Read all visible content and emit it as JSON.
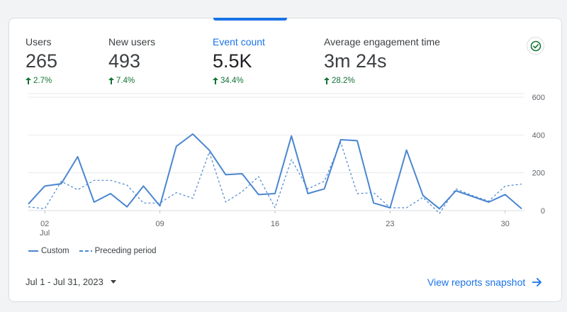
{
  "metrics": [
    {
      "label": "Users",
      "value": "265",
      "change": "2.7%",
      "active": false
    },
    {
      "label": "New users",
      "value": "493",
      "change": "7.4%",
      "active": false
    },
    {
      "label": "Event count",
      "value": "5.5K",
      "active": true,
      "change": "34.4%"
    },
    {
      "label": "Average engagement time",
      "value": "3m 24s",
      "change": "28.2%",
      "active": false
    }
  ],
  "legend": {
    "custom_label": "Custom",
    "preceding_label": "Preceding period"
  },
  "footer": {
    "date_range": "Jul 1 - Jul 31, 2023",
    "snapshot_link": "View reports snapshot"
  },
  "colors": {
    "accent": "#1a73e8",
    "line": "#4a86d0",
    "positive": "#137333"
  },
  "icons": {
    "check": "check-circle-icon",
    "caret": "caret-down-icon",
    "arrow": "arrow-right-icon",
    "change": "arrow-up-icon"
  },
  "chart_data": {
    "type": "line",
    "x": [
      1,
      2,
      3,
      4,
      5,
      6,
      7,
      8,
      9,
      10,
      11,
      12,
      13,
      14,
      15,
      16,
      17,
      18,
      19,
      20,
      21,
      22,
      23,
      24,
      25,
      26,
      27,
      28,
      29,
      30,
      31
    ],
    "x_ticks": [
      {
        "day": 2,
        "label": "02",
        "sublabel": "Jul"
      },
      {
        "day": 9,
        "label": "09"
      },
      {
        "day": 16,
        "label": "16"
      },
      {
        "day": 23,
        "label": "23"
      },
      {
        "day": 30,
        "label": "30"
      }
    ],
    "y_ticks": [
      0,
      200,
      400,
      600
    ],
    "ylim": [
      0,
      600
    ],
    "grid": true,
    "legend_position": "bottom-left",
    "series": [
      {
        "name": "Custom",
        "style": "solid",
        "values": [
          35,
          130,
          142,
          285,
          45,
          90,
          20,
          130,
          25,
          340,
          405,
          320,
          190,
          195,
          85,
          90,
          395,
          90,
          115,
          375,
          370,
          40,
          15,
          320,
          80,
          10,
          105,
          75,
          45,
          85,
          10
        ]
      },
      {
        "name": "Preceding period",
        "style": "dashed",
        "values": [
          20,
          10,
          155,
          110,
          160,
          160,
          135,
          40,
          40,
          95,
          65,
          310,
          45,
          100,
          180,
          15,
          270,
          115,
          155,
          360,
          90,
          95,
          15,
          15,
          70,
          -15,
          115,
          80,
          50,
          130,
          140
        ]
      }
    ]
  }
}
